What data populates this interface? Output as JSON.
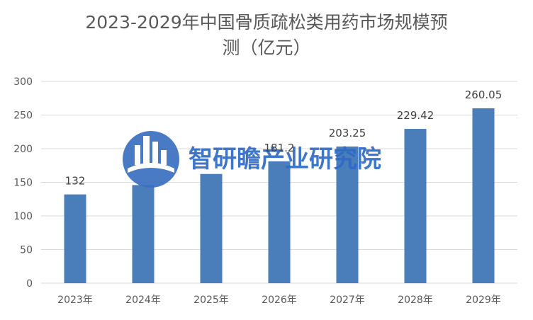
{
  "chart_data": {
    "type": "bar",
    "title": "2023-2029年中国骨质疏松类用药市场规模预\n测（亿元）",
    "categories": [
      "2023年",
      "2024年",
      "2025年",
      "2026年",
      "2027年",
      "2028年",
      "2029年"
    ],
    "values": [
      132,
      145.9,
      162.4,
      181.2,
      203.25,
      229.42,
      260.05
    ],
    "data_labels": [
      "132",
      "",
      "",
      "181.2",
      "203.25",
      "229.42",
      "260.05"
    ],
    "y_ticks": [
      "0",
      "50",
      "100",
      "150",
      "200",
      "250",
      "300"
    ],
    "ylim": [
      0,
      300
    ],
    "grid": true,
    "legend": "none",
    "bar_color": "#4a7ebb"
  },
  "watermark": {
    "text": "智研瞻产业研究院",
    "color": "#2e6bc6"
  }
}
